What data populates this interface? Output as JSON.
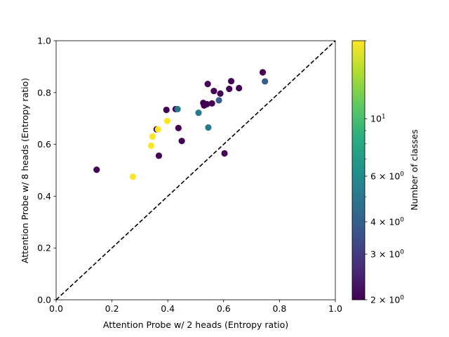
{
  "chart_data": {
    "type": "scatter",
    "title": "",
    "xlabel": "Attention Probe w/ 2 heads (Entropy ratio)",
    "ylabel": "Attention Probe w/ 8 heads (Entropy ratio)",
    "xlim": [
      0.0,
      1.0
    ],
    "ylim": [
      0.0,
      1.0
    ],
    "x_ticks": [
      "0.0",
      "0.2",
      "0.4",
      "0.6",
      "0.8",
      "1.0"
    ],
    "y_ticks": [
      "0.0",
      "0.2",
      "0.4",
      "0.6",
      "0.8",
      "1.0"
    ],
    "grid": false,
    "reference_line": {
      "style": "dashed",
      "color": "#000000",
      "from": [
        0,
        0
      ],
      "to": [
        1,
        1
      ]
    },
    "colorbar": {
      "label": "Number of classes",
      "scale": "log",
      "range": [
        2,
        20
      ],
      "colormap": "viridis",
      "major_ticks": [
        {
          "value": 2,
          "base": "2",
          "exp": "0"
        },
        {
          "value": 3,
          "base": "3",
          "exp": "0"
        },
        {
          "value": 4,
          "base": "4",
          "exp": "0"
        },
        {
          "value": 6,
          "base": "6",
          "exp": "0"
        },
        {
          "value": 10,
          "base": "10",
          "exp": "1"
        }
      ],
      "minor_ticks": [
        20
      ]
    },
    "points": [
      {
        "x": 0.145,
        "y": 0.502,
        "c": 2
      },
      {
        "x": 0.275,
        "y": 0.475,
        "c": 20
      },
      {
        "x": 0.34,
        "y": 0.595,
        "c": 20
      },
      {
        "x": 0.345,
        "y": 0.63,
        "c": 20
      },
      {
        "x": 0.36,
        "y": 0.658,
        "c": 2
      },
      {
        "x": 0.365,
        "y": 0.658,
        "c": 20
      },
      {
        "x": 0.368,
        "y": 0.556,
        "c": 2
      },
      {
        "x": 0.395,
        "y": 0.733,
        "c": 2
      },
      {
        "x": 0.398,
        "y": 0.69,
        "c": 20
      },
      {
        "x": 0.428,
        "y": 0.736,
        "c": 2
      },
      {
        "x": 0.435,
        "y": 0.736,
        "c": 5
      },
      {
        "x": 0.438,
        "y": 0.663,
        "c": 2
      },
      {
        "x": 0.45,
        "y": 0.613,
        "c": 2
      },
      {
        "x": 0.51,
        "y": 0.722,
        "c": 5
      },
      {
        "x": 0.527,
        "y": 0.76,
        "c": 2
      },
      {
        "x": 0.53,
        "y": 0.75,
        "c": 2
      },
      {
        "x": 0.54,
        "y": 0.755,
        "c": 2
      },
      {
        "x": 0.543,
        "y": 0.833,
        "c": 2
      },
      {
        "x": 0.545,
        "y": 0.665,
        "c": 5
      },
      {
        "x": 0.558,
        "y": 0.758,
        "c": 2
      },
      {
        "x": 0.565,
        "y": 0.806,
        "c": 2
      },
      {
        "x": 0.583,
        "y": 0.77,
        "c": 4
      },
      {
        "x": 0.588,
        "y": 0.796,
        "c": 2
      },
      {
        "x": 0.603,
        "y": 0.565,
        "c": 2
      },
      {
        "x": 0.62,
        "y": 0.814,
        "c": 2
      },
      {
        "x": 0.627,
        "y": 0.844,
        "c": 2
      },
      {
        "x": 0.655,
        "y": 0.817,
        "c": 2
      },
      {
        "x": 0.74,
        "y": 0.878,
        "c": 2
      },
      {
        "x": 0.748,
        "y": 0.843,
        "c": 4
      }
    ]
  }
}
